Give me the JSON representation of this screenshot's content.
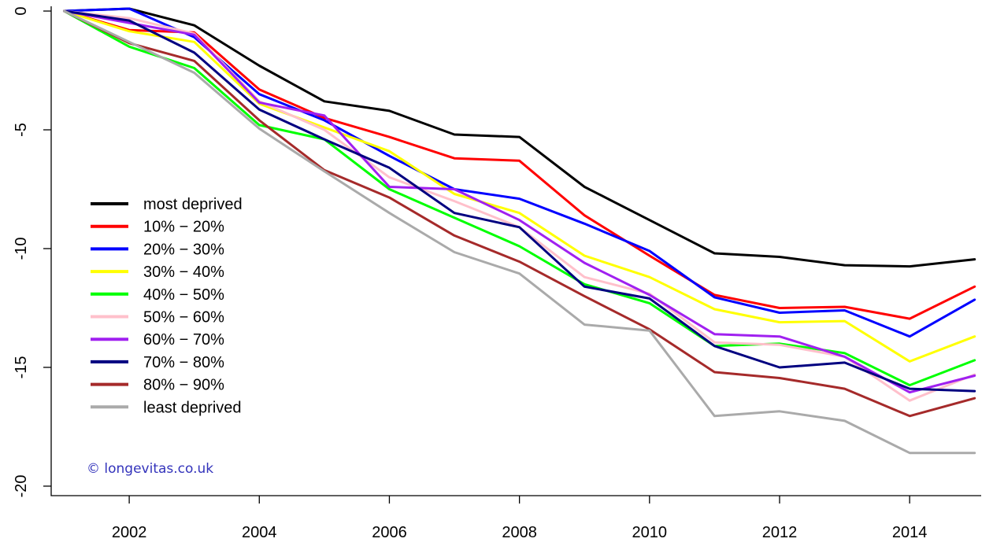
{
  "chart_data": {
    "type": "line",
    "title": "",
    "xlabel": "",
    "ylabel": "",
    "x": [
      2001,
      2002,
      2003,
      2004,
      2005,
      2006,
      2007,
      2008,
      2009,
      2010,
      2011,
      2012,
      2013,
      2014,
      2015
    ],
    "xlim": [
      2000.8,
      2015.1
    ],
    "ylim": [
      -20.4,
      0.2
    ],
    "x_ticks": [
      2002,
      2004,
      2006,
      2008,
      2010,
      2012,
      2014
    ],
    "x_tick_labels": [
      "2002",
      "2004",
      "2006",
      "2008",
      "2010",
      "2012",
      "2014"
    ],
    "y_ticks": [
      0,
      -5,
      -10,
      -15,
      -20
    ],
    "y_tick_labels": [
      "0",
      "-5",
      "-10",
      "-15",
      "-20"
    ],
    "grid": false,
    "legend_position": "left",
    "series": [
      {
        "name": "most deprived",
        "color": "#000000",
        "values": [
          0,
          0.1,
          -0.6,
          -2.3,
          -3.8,
          -4.2,
          -5.2,
          -5.3,
          -7.4,
          -8.8,
          -10.2,
          -10.35,
          -10.7,
          -10.75,
          -10.45
        ]
      },
      {
        "name": "10% − 20%",
        "color": "#ff0000",
        "values": [
          0,
          -0.8,
          -0.9,
          -3.3,
          -4.5,
          -5.3,
          -6.2,
          -6.3,
          -8.6,
          -10.3,
          -11.95,
          -12.5,
          -12.45,
          -12.95,
          -11.6
        ]
      },
      {
        "name": "20% − 30%",
        "color": "#0000ff",
        "values": [
          0,
          0.1,
          -1.1,
          -3.5,
          -4.6,
          -6.1,
          -7.5,
          -7.9,
          -8.95,
          -10.1,
          -12.05,
          -12.7,
          -12.6,
          -13.7,
          -12.15
        ]
      },
      {
        "name": "30% − 40%",
        "color": "#ffff00",
        "values": [
          0,
          -0.85,
          -1.3,
          -3.9,
          -4.9,
          -5.9,
          -7.7,
          -8.5,
          -10.3,
          -11.2,
          -12.55,
          -13.1,
          -13.05,
          -14.75,
          -13.7
        ]
      },
      {
        "name": "40% − 50%",
        "color": "#00ff00",
        "values": [
          0,
          -1.5,
          -2.4,
          -4.8,
          -5.4,
          -7.5,
          -8.7,
          -9.9,
          -11.5,
          -12.3,
          -14.1,
          -14.0,
          -14.4,
          -15.75,
          -14.7
        ]
      },
      {
        "name": "50% − 60%",
        "color": "#ffc0cb",
        "values": [
          0,
          -0.3,
          -0.95,
          -3.8,
          -5.0,
          -7.0,
          -8.0,
          -9.1,
          -11.2,
          -11.9,
          -13.95,
          -14.05,
          -14.55,
          -16.4,
          -15.3
        ]
      },
      {
        "name": "60% − 70%",
        "color": "#a020f0",
        "values": [
          0,
          -0.5,
          -1.0,
          -3.85,
          -4.4,
          -7.4,
          -7.5,
          -8.8,
          -10.6,
          -11.95,
          -13.6,
          -13.7,
          -14.55,
          -16.05,
          -15.35
        ]
      },
      {
        "name": "70% − 80%",
        "color": "#000080",
        "values": [
          0,
          -0.4,
          -1.75,
          -4.15,
          -5.4,
          -6.6,
          -8.5,
          -9.1,
          -11.6,
          -12.1,
          -14.1,
          -15.0,
          -14.8,
          -15.9,
          -16.0
        ]
      },
      {
        "name": "80% − 90%",
        "color": "#a52a2a",
        "values": [
          0,
          -1.35,
          -2.1,
          -4.6,
          -6.7,
          -7.85,
          -9.45,
          -10.55,
          -12.0,
          -13.4,
          -15.2,
          -15.45,
          -15.9,
          -17.05,
          -16.3
        ]
      },
      {
        "name": "least deprived",
        "color": "#aaaaaa",
        "values": [
          0,
          -1.3,
          -2.6,
          -4.95,
          -6.75,
          -8.5,
          -10.15,
          -11.05,
          -13.2,
          -13.45,
          -17.05,
          -16.85,
          -17.25,
          -18.6,
          -18.6
        ]
      }
    ],
    "watermark": {
      "text": "© longevitas.co.uk",
      "color": "#3333bb"
    }
  }
}
